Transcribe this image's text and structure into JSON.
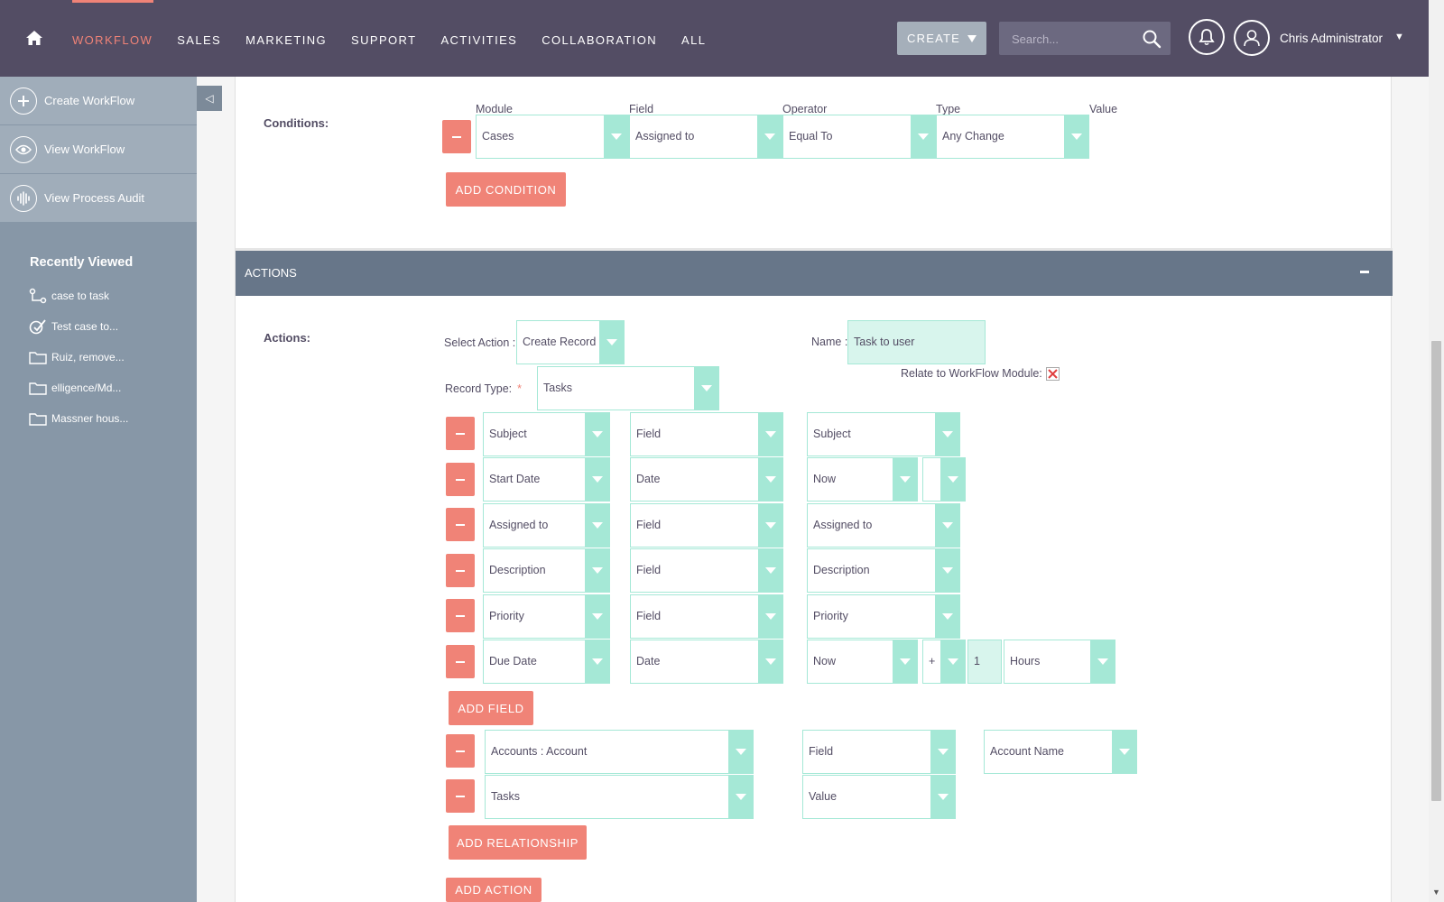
{
  "nav": {
    "items": [
      "WORKFLOW",
      "SALES",
      "MARKETING",
      "SUPPORT",
      "ACTIVITIES",
      "COLLABORATION",
      "ALL"
    ],
    "create_label": "CREATE",
    "search_placeholder": "Search...",
    "user_name": "Chris Administrator"
  },
  "sidebar": {
    "actions": [
      "Create WorkFlow",
      "View WorkFlow",
      "View Process Audit"
    ],
    "recent_title": "Recently Viewed",
    "recent_items": [
      "case to task",
      "Test case to...",
      "Ruiz, remove...",
      "elligence/Md...",
      "Massner hous..."
    ]
  },
  "conditions": {
    "label": "Conditions:",
    "headers": [
      "Module",
      "Field",
      "Operator",
      "Type",
      "Value"
    ],
    "row": [
      "Cases",
      "Assigned to",
      "Equal To",
      "Any Change"
    ],
    "add_label": "ADD CONDITION"
  },
  "actions": {
    "bar_title": "ACTIONS",
    "label": "Actions:",
    "select_action_label": "Select Action :",
    "select_action_value": "Create Record",
    "name_label": "Name :",
    "name_value": "Task to user",
    "relate_label": "Relate to WorkFlow Module:",
    "record_type_label": "Record Type:",
    "record_type_required": "*",
    "record_type_value": "Tasks",
    "fields": [
      {
        "field": "Subject",
        "type": "Field",
        "value": "Subject"
      },
      {
        "field": "Start Date",
        "type": "Date",
        "value": "Now"
      },
      {
        "field": "Assigned to",
        "type": "Field",
        "value": "Assigned to"
      },
      {
        "field": "Description",
        "type": "Field",
        "value": "Description"
      },
      {
        "field": "Priority",
        "type": "Field",
        "value": "Priority"
      },
      {
        "field": "Due Date",
        "type": "Date",
        "value": "Now",
        "op": "+",
        "amount": "1",
        "unit": "Hours"
      }
    ],
    "add_field_label": "ADD FIELD",
    "relationships": [
      {
        "module": "Accounts : Account",
        "type": "Field",
        "value": "Account Name"
      },
      {
        "module": "Tasks",
        "type": "Value"
      }
    ],
    "add_relationship_label": "ADD RELATIONSHIP",
    "add_action_label": "ADD ACTION"
  }
}
